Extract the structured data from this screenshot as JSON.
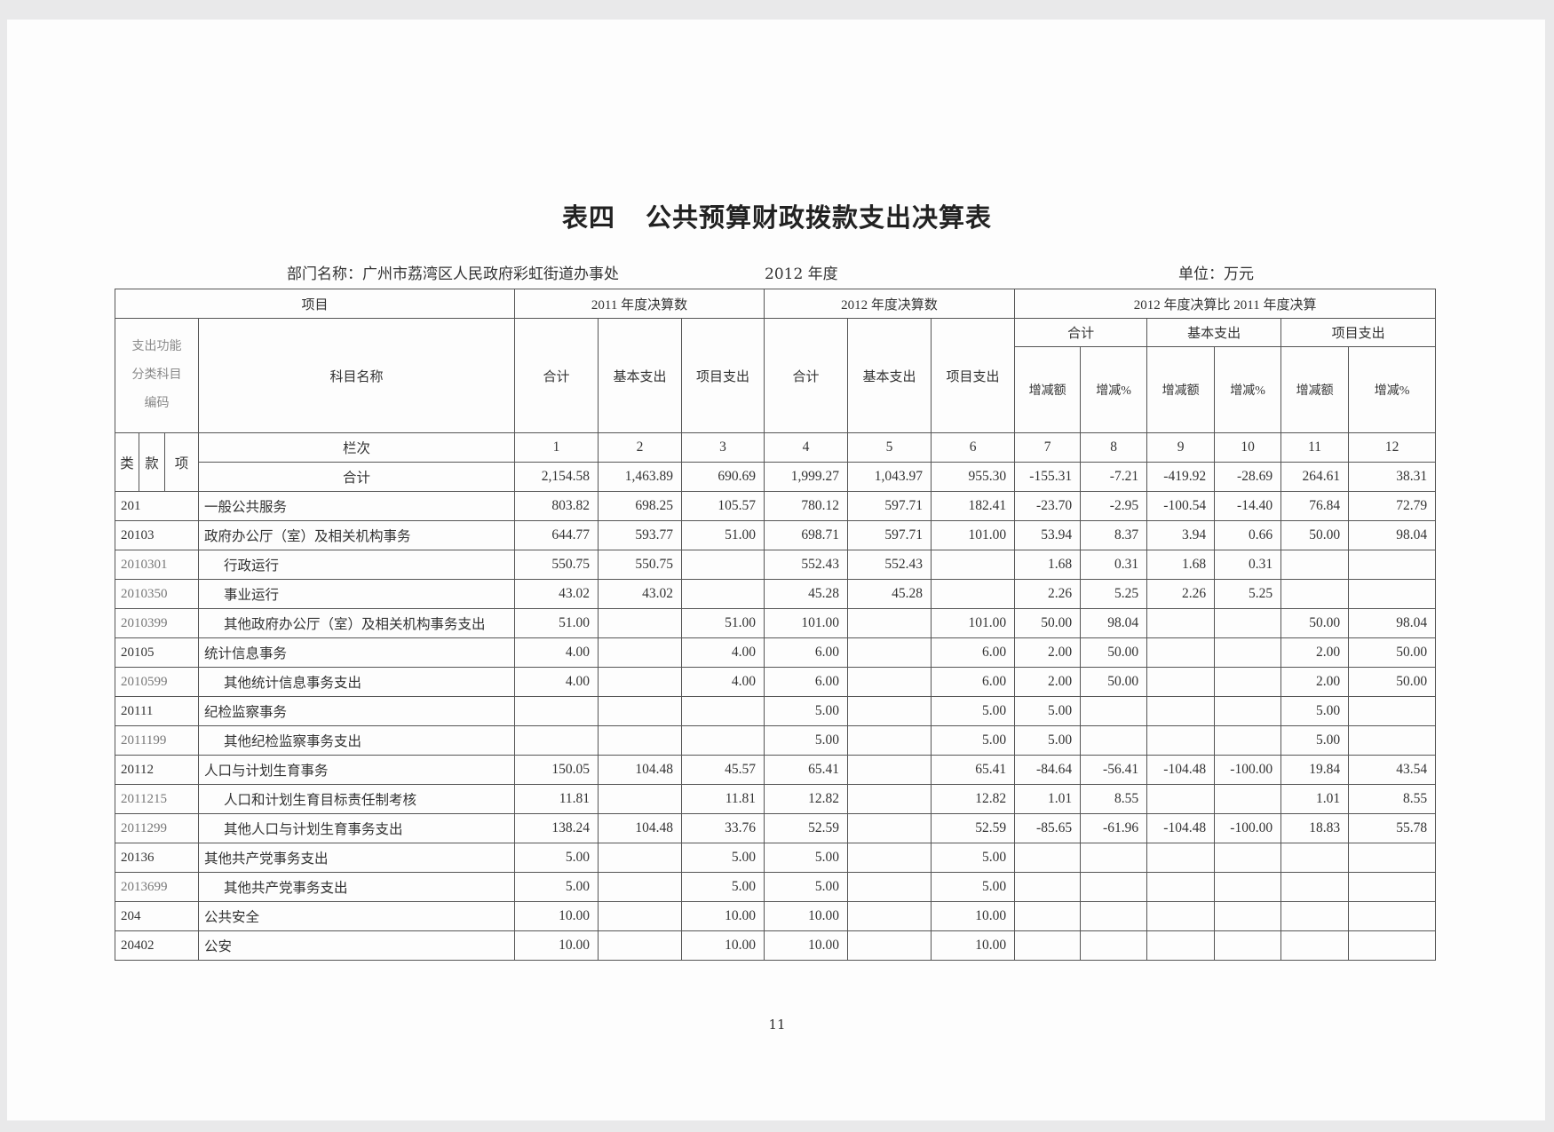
{
  "title": {
    "part1": "表四",
    "part2": "公共预算财政拨款支出决算表"
  },
  "meta": {
    "department": "部门名称：广州市荔湾区人民政府彩虹街道办事处",
    "year": "2012 年度",
    "unit": "单位：万元"
  },
  "header": {
    "item": "项目",
    "y2011": "2011 年度决算数",
    "y2012": "2012 年度决算数",
    "compare": "2012 年度决算比 2011 年度决算",
    "code_label": "支出功能分类科目编码",
    "name_label": "科目名称",
    "total": "合计",
    "basic": "基本支出",
    "project": "项目支出",
    "change_amount": "增减额",
    "change_pct": "增减%",
    "lei": "类",
    "kuan": "款",
    "xiang": "项",
    "column_order_label": "栏次",
    "column_numbers": [
      "1",
      "2",
      "3",
      "4",
      "5",
      "6",
      "7",
      "8",
      "9",
      "10",
      "11",
      "12"
    ],
    "sum_label": "合计"
  },
  "sum_row": [
    "2,154.58",
    "1,463.89",
    "690.69",
    "1,999.27",
    "1,043.97",
    "955.30",
    "-155.31",
    "-7.21",
    "-419.92",
    "-28.69",
    "264.61",
    "38.31"
  ],
  "rows": [
    {
      "code": "201",
      "name": "一般公共服务",
      "sub": false,
      "values": [
        "803.82",
        "698.25",
        "105.57",
        "780.12",
        "597.71",
        "182.41",
        "-23.70",
        "-2.95",
        "-100.54",
        "-14.40",
        "76.84",
        "72.79"
      ]
    },
    {
      "code": "20103",
      "name": "政府办公厅（室）及相关机构事务",
      "sub": false,
      "values": [
        "644.77",
        "593.77",
        "51.00",
        "698.71",
        "597.71",
        "101.00",
        "53.94",
        "8.37",
        "3.94",
        "0.66",
        "50.00",
        "98.04"
      ]
    },
    {
      "code": "2010301",
      "name": "行政运行",
      "sub": true,
      "values": [
        "550.75",
        "550.75",
        "",
        "552.43",
        "552.43",
        "",
        "1.68",
        "0.31",
        "1.68",
        "0.31",
        "",
        ""
      ]
    },
    {
      "code": "2010350",
      "name": "事业运行",
      "sub": true,
      "values": [
        "43.02",
        "43.02",
        "",
        "45.28",
        "45.28",
        "",
        "2.26",
        "5.25",
        "2.26",
        "5.25",
        "",
        ""
      ]
    },
    {
      "code": "2010399",
      "name": "其他政府办公厅（室）及相关机构事务支出",
      "sub": true,
      "values": [
        "51.00",
        "",
        "51.00",
        "101.00",
        "",
        "101.00",
        "50.00",
        "98.04",
        "",
        "",
        "50.00",
        "98.04"
      ]
    },
    {
      "code": "20105",
      "name": "统计信息事务",
      "sub": false,
      "values": [
        "4.00",
        "",
        "4.00",
        "6.00",
        "",
        "6.00",
        "2.00",
        "50.00",
        "",
        "",
        "2.00",
        "50.00"
      ]
    },
    {
      "code": "2010599",
      "name": "其他统计信息事务支出",
      "sub": true,
      "values": [
        "4.00",
        "",
        "4.00",
        "6.00",
        "",
        "6.00",
        "2.00",
        "50.00",
        "",
        "",
        "2.00",
        "50.00"
      ]
    },
    {
      "code": "20111",
      "name": "纪检监察事务",
      "sub": false,
      "values": [
        "",
        "",
        "",
        "5.00",
        "",
        "5.00",
        "5.00",
        "",
        "",
        "",
        "5.00",
        ""
      ]
    },
    {
      "code": "2011199",
      "name": "其他纪检监察事务支出",
      "sub": true,
      "values": [
        "",
        "",
        "",
        "5.00",
        "",
        "5.00",
        "5.00",
        "",
        "",
        "",
        "5.00",
        ""
      ]
    },
    {
      "code": "20112",
      "name": "人口与计划生育事务",
      "sub": false,
      "values": [
        "150.05",
        "104.48",
        "45.57",
        "65.41",
        "",
        "65.41",
        "-84.64",
        "-56.41",
        "-104.48",
        "-100.00",
        "19.84",
        "43.54"
      ]
    },
    {
      "code": "2011215",
      "name": "人口和计划生育目标责任制考核",
      "sub": true,
      "values": [
        "11.81",
        "",
        "11.81",
        "12.82",
        "",
        "12.82",
        "1.01",
        "8.55",
        "",
        "",
        "1.01",
        "8.55"
      ]
    },
    {
      "code": "2011299",
      "name": "其他人口与计划生育事务支出",
      "sub": true,
      "values": [
        "138.24",
        "104.48",
        "33.76",
        "52.59",
        "",
        "52.59",
        "-85.65",
        "-61.96",
        "-104.48",
        "-100.00",
        "18.83",
        "55.78"
      ]
    },
    {
      "code": "20136",
      "name": "其他共产党事务支出",
      "sub": false,
      "values": [
        "5.00",
        "",
        "5.00",
        "5.00",
        "",
        "5.00",
        "",
        "",
        "",
        "",
        "",
        ""
      ]
    },
    {
      "code": "2013699",
      "name": "其他共产党事务支出",
      "sub": true,
      "values": [
        "5.00",
        "",
        "5.00",
        "5.00",
        "",
        "5.00",
        "",
        "",
        "",
        "",
        "",
        ""
      ]
    },
    {
      "code": "204",
      "name": "公共安全",
      "sub": false,
      "values": [
        "10.00",
        "",
        "10.00",
        "10.00",
        "",
        "10.00",
        "",
        "",
        "",
        "",
        "",
        ""
      ]
    },
    {
      "code": "20402",
      "name": "公安",
      "sub": false,
      "values": [
        "10.00",
        "",
        "10.00",
        "10.00",
        "",
        "10.00",
        "",
        "",
        "",
        "",
        "",
        ""
      ]
    }
  ],
  "page_number": "11"
}
